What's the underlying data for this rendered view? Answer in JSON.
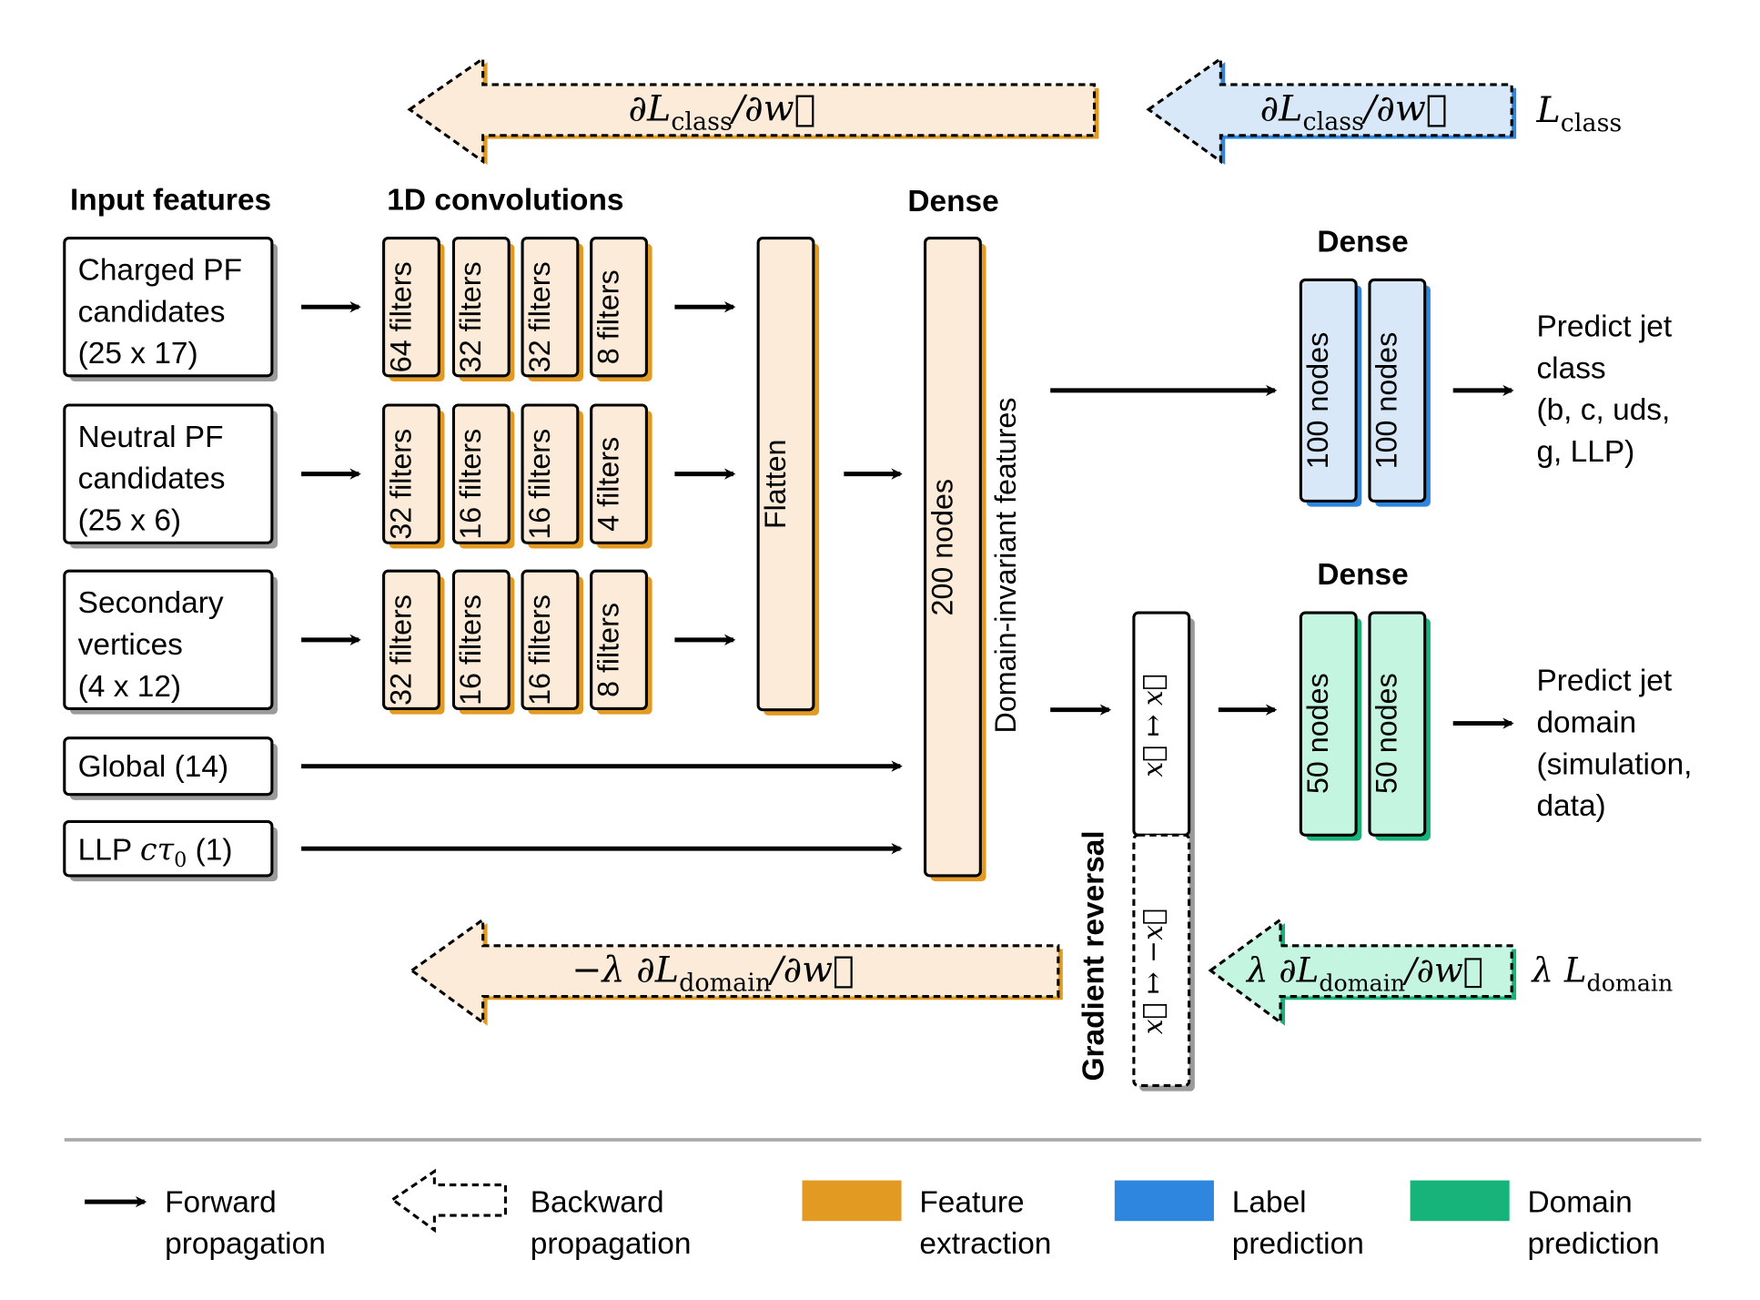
{
  "headers": {
    "input_features": "Input features",
    "conv": "1D convolutions",
    "dense_main": "Dense",
    "dense_label": "Dense",
    "dense_domain": "Dense"
  },
  "inputs": [
    {
      "lines": [
        "Charged PF",
        "candidates",
        "(25 x 17)"
      ]
    },
    {
      "lines": [
        "Neutral PF",
        "candidates",
        "(25 x 6)"
      ]
    },
    {
      "lines": [
        "Secondary",
        "vertices",
        "(4 x 12)"
      ]
    },
    {
      "lines": [
        "Global (14)"
      ]
    },
    {
      "lines": [
        "LLP ",
        "cτ",
        "0",
        " (1)"
      ]
    }
  ],
  "conv_rows": [
    [
      "64 filters",
      "32 filters",
      "32 filters",
      "8 filters"
    ],
    [
      "32 filters",
      "16 filters",
      "16 filters",
      "4 filters"
    ],
    [
      "32 filters",
      "16 filters",
      "16 filters",
      "8 filters"
    ]
  ],
  "flatten": "Flatten",
  "dense_200": "200 nodes",
  "domain_invariant": "Domain-invariant features",
  "label_layers": [
    "100 nodes",
    "100 nodes"
  ],
  "domain_layers": [
    "50 nodes",
    "50 nodes"
  ],
  "predict_class": [
    "Predict jet",
    "class",
    "(b, c, uds,",
    " g, LLP)"
  ],
  "predict_domain": [
    "Predict jet",
    "domain",
    "(simulation,",
    " data)"
  ],
  "gradient_reversal": {
    "title": "Gradient reversal",
    "forward": "x⃗ ↦ x⃗",
    "backward": "x⃗ ↦ −x⃗"
  },
  "backprop": {
    "class_feature": {
      "pre": "∂L",
      "sub": "class",
      "post": "/∂w⃗"
    },
    "class_label": {
      "pre": "∂L",
      "sub": "class",
      "post": "/∂w⃗"
    },
    "class_loss": {
      "pre": "L",
      "sub": "class"
    },
    "domain_feature": {
      "pre": "−λ ∂L",
      "sub": "domain",
      "post": "/∂w⃗"
    },
    "domain_domain": {
      "pre": "λ ∂L",
      "sub": "domain",
      "post": "/∂w⃗"
    },
    "domain_loss": {
      "pre": "λ L",
      "sub": "domain"
    }
  },
  "legend": [
    {
      "kind": "forward-arrow",
      "lines": [
        "Forward",
        "propagation"
      ]
    },
    {
      "kind": "backward-arrow",
      "lines": [
        "Backward",
        "propagation"
      ]
    },
    {
      "kind": "swatch",
      "color": "#E39A22",
      "lines": [
        "Feature",
        "extraction"
      ]
    },
    {
      "kind": "swatch",
      "color": "#2E86DE",
      "lines": [
        "Label",
        "prediction"
      ]
    },
    {
      "kind": "swatch",
      "color": "#16B47A",
      "lines": [
        "Domain",
        "prediction"
      ]
    }
  ],
  "colors": {
    "feature": "#E39A22",
    "feature_fill": "#FBEBD8",
    "label": "#2E86DE",
    "label_fill": "#D8E8F8",
    "domain": "#16B47A",
    "domain_fill": "#C4F5E0",
    "shadow": "#9A9A9A"
  }
}
